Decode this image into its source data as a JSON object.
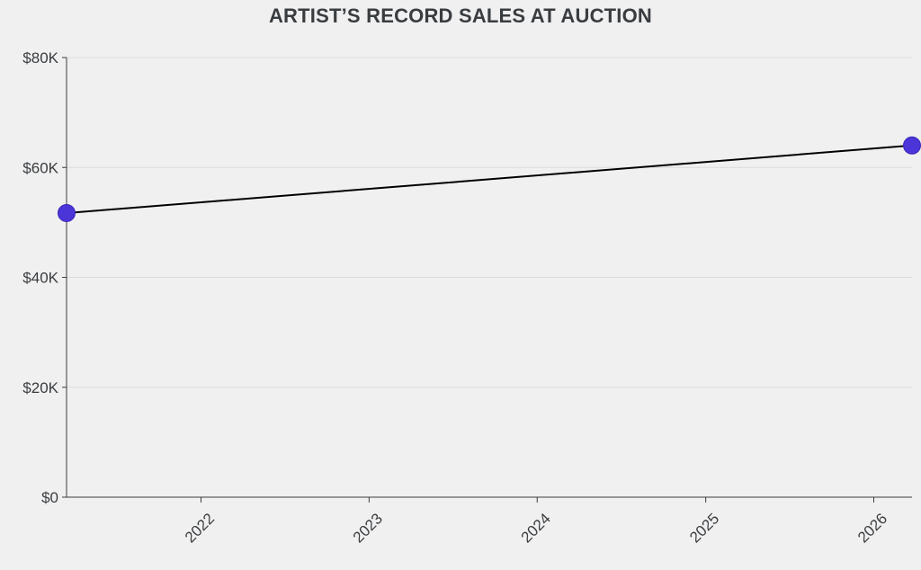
{
  "chart_data": {
    "type": "line",
    "title": "ARTIST’S RECORD SALES AT AUCTION",
    "xlabel": "",
    "ylabel": "",
    "x_ticks": [
      "2022",
      "2023",
      "2024",
      "2025",
      "2026"
    ],
    "y_ticks": [
      "$0",
      "$20K",
      "$40K",
      "$60K",
      "$80K"
    ],
    "ylim": [
      0,
      80000
    ],
    "xlim": [
      "2021-03-15",
      "2026-03-25"
    ],
    "series": [
      {
        "x": [
          "2021-03-15",
          "2026-03-25"
        ],
        "y": [
          51700,
          64000
        ]
      }
    ],
    "grid": true,
    "colors": {
      "marker": "#4b35d8",
      "line": "#000000",
      "grid": "#dcdcdc",
      "axis": "#3a3d40",
      "background": "#f0f0f0"
    }
  }
}
